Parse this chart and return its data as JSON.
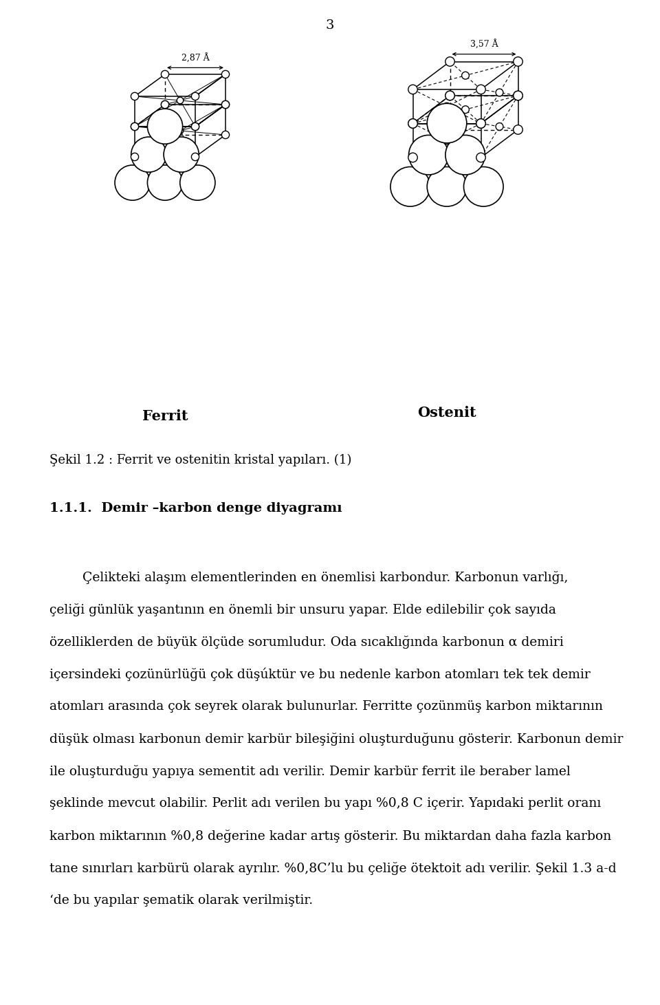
{
  "page_number": "3",
  "fig_label": "Ferrit",
  "fig_label2": "Ostenit",
  "caption": "Şekil 1.2 : Ferrit ve ostenitin kristal yapıları. (1)",
  "section_title": "1.1.1.  Demir –karbon denge diyagramı",
  "lines": [
    "        Çelikteki alaşım elementlerinden en önemlisi karbondur. Karbonun varlığı,",
    "çeliği günlük yaşantının en önemli bir unsuru yapar. Elde edilebilir çok sayıda",
    "özelliklerden de büyük ölçüde sorumludur. Oda sıcaklığında karbonun α demiri",
    "içersindeki çozünürlüğü çok düşúktür ve bu nedenle karbon atomları tek tek demir",
    "atomları arasında çok seyrek olarak bulunurlar. Ferritte çozünmüş karbon miktarının",
    "düşük olması karbonun demir karbür bileşiğini oluşturduğunu gösterir. Karbonun demir",
    "ile oluşturduğu yapıya sementit adı verilir. Demir karbür ferrit ile beraber lamel",
    "şeklinde mevcut olabilir. Perlit adı verilen bu yapı %0,8 C içerir. Yapıdaki perlit oranı",
    "karbon miktarının %0,8 değerine kadar artış gösterir. Bu miktardan daha fazla karbon",
    "tane sınırları karbürü olarak ayrılır. %0,8C’lu bu çeliğe ötektoit adı verilir. Şekil 1.3 a-d",
    "‘de bu yapılar şematik olarak verilmiştir."
  ],
  "bg_color": "#ffffff",
  "text_color": "#000000",
  "font_size_body": 13.5,
  "font_size_caption": 13,
  "font_size_section": 14,
  "font_size_page_num": 14
}
